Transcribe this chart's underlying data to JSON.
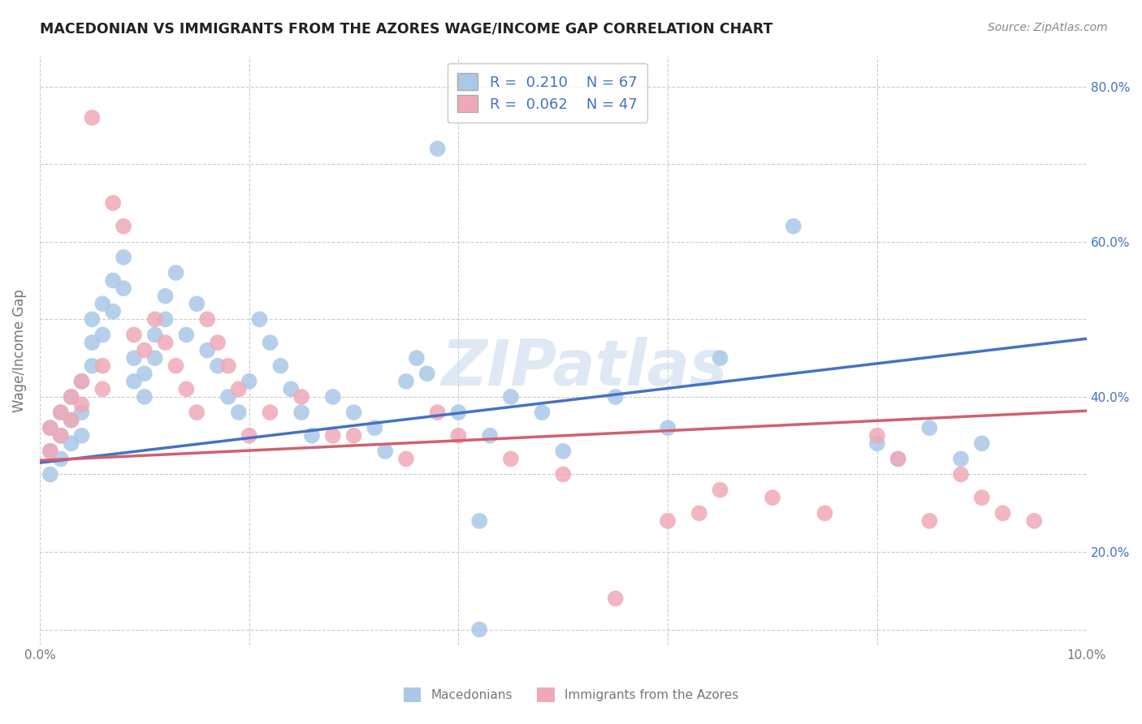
{
  "title": "MACEDONIAN VS IMMIGRANTS FROM THE AZORES WAGE/INCOME GAP CORRELATION CHART",
  "source": "Source: ZipAtlas.com",
  "ylabel": "Wage/Income Gap",
  "blue_color": "#aac8e8",
  "pink_color": "#f0a8b8",
  "blue_line_color": "#4472c4",
  "pink_line_color": "#d06070",
  "blue_R": 0.21,
  "blue_N": 67,
  "pink_R": 0.062,
  "pink_N": 47,
  "legend_label_blue": "Macedonians",
  "legend_label_pink": "Immigrants from the Azores",
  "watermark": "ZIPatlas",
  "xlim": [
    0.0,
    0.1
  ],
  "ylim": [
    0.08,
    0.84
  ],
  "text_color": "#2255aa",
  "axis_label_color": "#777777",
  "grid_color": "#cccccc",
  "blue_x": [
    0.001,
    0.001,
    0.001,
    0.002,
    0.002,
    0.002,
    0.003,
    0.003,
    0.003,
    0.004,
    0.004,
    0.004,
    0.005,
    0.005,
    0.005,
    0.006,
    0.006,
    0.007,
    0.007,
    0.008,
    0.008,
    0.009,
    0.009,
    0.01,
    0.01,
    0.011,
    0.011,
    0.012,
    0.012,
    0.013,
    0.014,
    0.015,
    0.016,
    0.017,
    0.018,
    0.019,
    0.02,
    0.021,
    0.022,
    0.023,
    0.024,
    0.025,
    0.026,
    0.028,
    0.03,
    0.032,
    0.033,
    0.035,
    0.036,
    0.037,
    0.038,
    0.04,
    0.042,
    0.043,
    0.045,
    0.048,
    0.05,
    0.055,
    0.06,
    0.065,
    0.072,
    0.08,
    0.082,
    0.085,
    0.088,
    0.09,
    0.042
  ],
  "blue_y": [
    0.36,
    0.33,
    0.3,
    0.38,
    0.35,
    0.32,
    0.4,
    0.37,
    0.34,
    0.42,
    0.38,
    0.35,
    0.5,
    0.47,
    0.44,
    0.52,
    0.48,
    0.55,
    0.51,
    0.58,
    0.54,
    0.45,
    0.42,
    0.43,
    0.4,
    0.48,
    0.45,
    0.53,
    0.5,
    0.56,
    0.48,
    0.52,
    0.46,
    0.44,
    0.4,
    0.38,
    0.42,
    0.5,
    0.47,
    0.44,
    0.41,
    0.38,
    0.35,
    0.4,
    0.38,
    0.36,
    0.33,
    0.42,
    0.45,
    0.43,
    0.72,
    0.38,
    0.24,
    0.35,
    0.4,
    0.38,
    0.33,
    0.4,
    0.36,
    0.45,
    0.62,
    0.34,
    0.32,
    0.36,
    0.32,
    0.34,
    0.1
  ],
  "pink_x": [
    0.001,
    0.001,
    0.002,
    0.002,
    0.003,
    0.003,
    0.004,
    0.004,
    0.005,
    0.006,
    0.006,
    0.007,
    0.008,
    0.009,
    0.01,
    0.011,
    0.012,
    0.013,
    0.014,
    0.015,
    0.016,
    0.017,
    0.018,
    0.019,
    0.02,
    0.022,
    0.025,
    0.028,
    0.03,
    0.035,
    0.038,
    0.04,
    0.045,
    0.05,
    0.055,
    0.06,
    0.063,
    0.065,
    0.07,
    0.075,
    0.08,
    0.082,
    0.085,
    0.088,
    0.09,
    0.092,
    0.095
  ],
  "pink_y": [
    0.36,
    0.33,
    0.38,
    0.35,
    0.4,
    0.37,
    0.42,
    0.39,
    0.76,
    0.44,
    0.41,
    0.65,
    0.62,
    0.48,
    0.46,
    0.5,
    0.47,
    0.44,
    0.41,
    0.38,
    0.5,
    0.47,
    0.44,
    0.41,
    0.35,
    0.38,
    0.4,
    0.35,
    0.35,
    0.32,
    0.38,
    0.35,
    0.32,
    0.3,
    0.14,
    0.24,
    0.25,
    0.28,
    0.27,
    0.25,
    0.35,
    0.32,
    0.24,
    0.3,
    0.27,
    0.25,
    0.24
  ],
  "blue_line_x0": 0.0,
  "blue_line_y0": 0.315,
  "blue_line_x1": 0.1,
  "blue_line_y1": 0.475,
  "pink_line_x0": 0.0,
  "pink_line_y0": 0.318,
  "pink_line_x1": 0.1,
  "pink_line_y1": 0.382
}
